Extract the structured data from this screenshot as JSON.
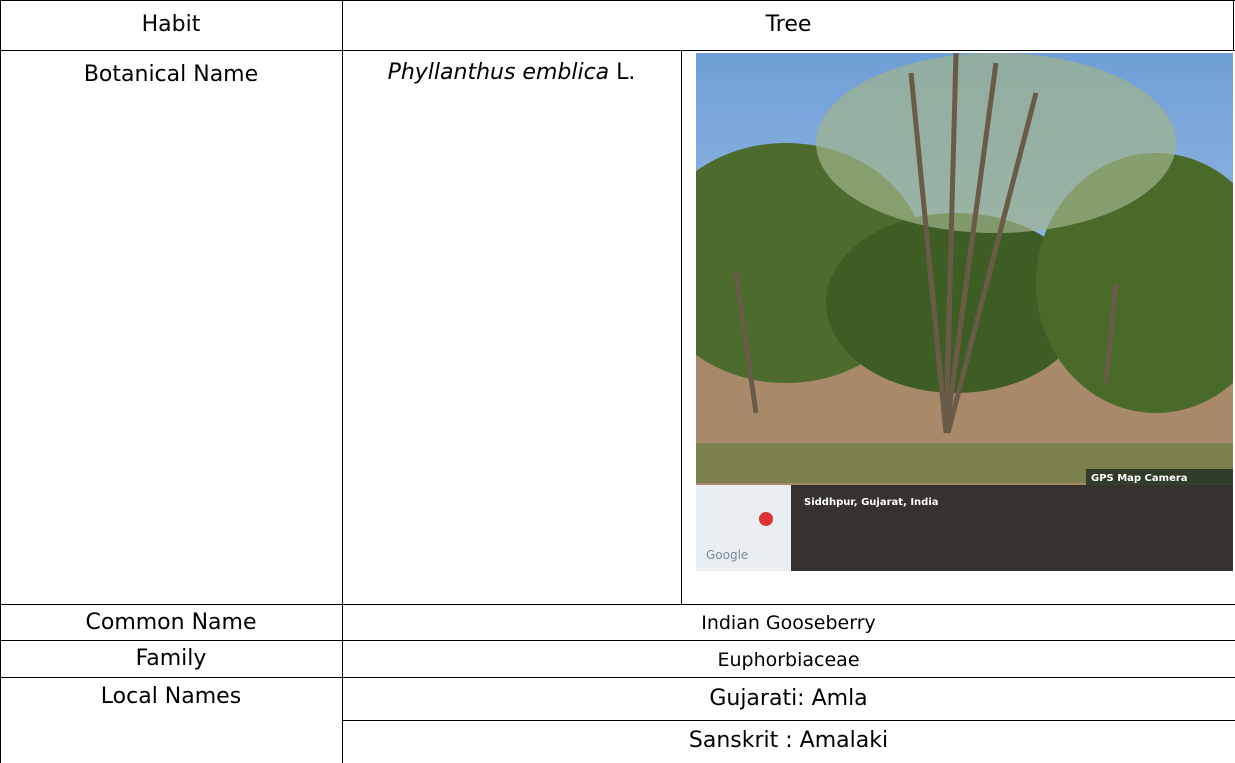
{
  "table": {
    "habit": {
      "label": "Habit",
      "value": "Tree"
    },
    "botanical_name": {
      "label": "Botanical Name",
      "species": "Phyllanthus emblica",
      "authority": "L."
    },
    "photo_overlay": {
      "badge": "GPS Map Camera",
      "location": "Siddhpur, Gujarat, India",
      "map_logo": "Google"
    },
    "common_name": {
      "label": "Common Name",
      "value": "Indian Gooseberry"
    },
    "family": {
      "label": "Family",
      "value": "Euphorbiaceae"
    },
    "local_names": {
      "label": "Local Names",
      "values": [
        "Gujarati: Amla",
        "Sanskrit : Amalaki"
      ]
    }
  }
}
